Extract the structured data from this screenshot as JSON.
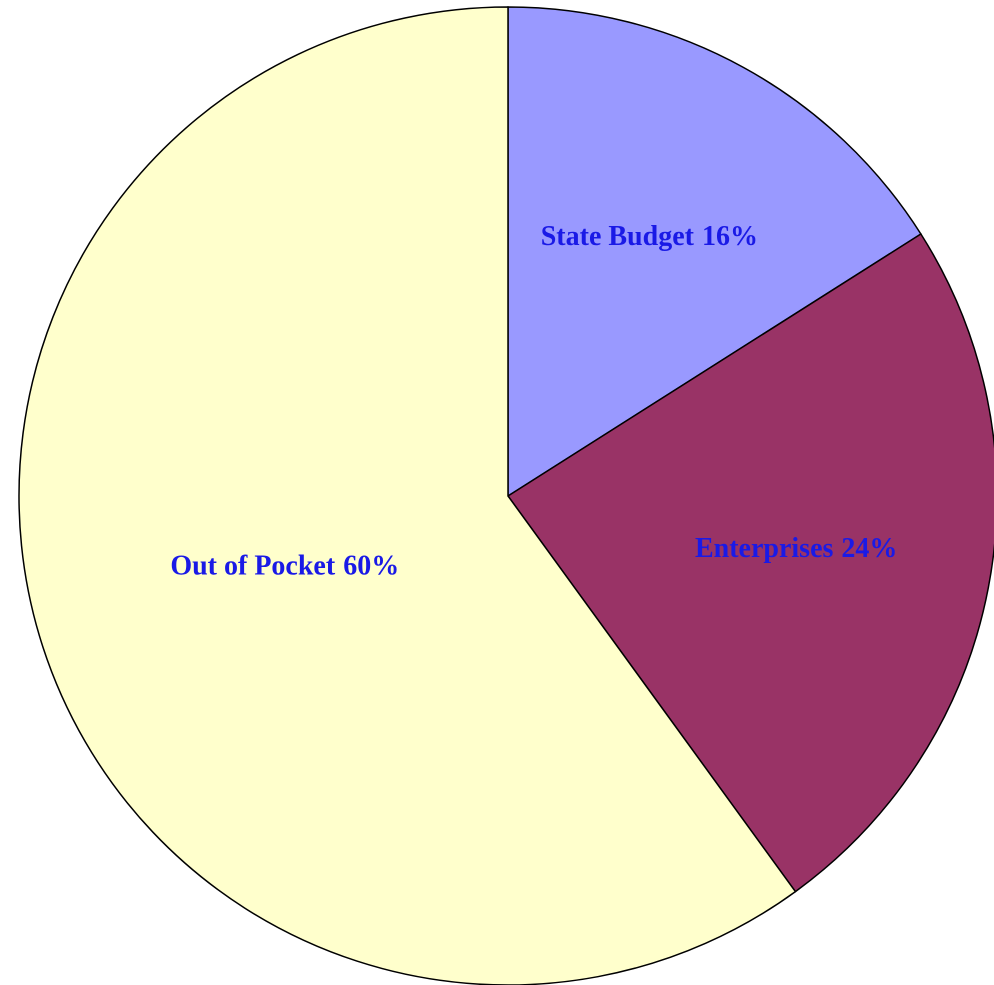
{
  "chart_data": {
    "type": "pie",
    "categories": [
      "State Budget",
      "Enterprises",
      "Out of Pocket"
    ],
    "values": [
      16,
      24,
      60
    ],
    "value_labels": [
      "16%",
      "24%",
      "60%"
    ],
    "colors": [
      "#9999ff",
      "#993366",
      "#ffffcc"
    ]
  }
}
